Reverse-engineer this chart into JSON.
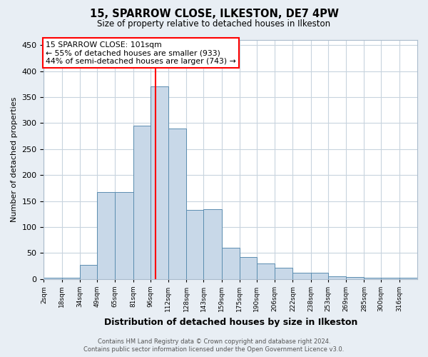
{
  "title": "15, SPARROW CLOSE, ILKESTON, DE7 4PW",
  "subtitle": "Size of property relative to detached houses in Ilkeston",
  "xlabel": "Distribution of detached houses by size in Ilkeston",
  "ylabel": "Number of detached properties",
  "bin_labels": [
    "2sqm",
    "18sqm",
    "34sqm",
    "49sqm",
    "65sqm",
    "81sqm",
    "96sqm",
    "112sqm",
    "128sqm",
    "143sqm",
    "159sqm",
    "175sqm",
    "190sqm",
    "206sqm",
    "222sqm",
    "238sqm",
    "253sqm",
    "269sqm",
    "285sqm",
    "300sqm",
    "316sqm"
  ],
  "bin_edges": [
    2,
    18,
    34,
    49,
    65,
    81,
    96,
    112,
    128,
    143,
    159,
    175,
    190,
    206,
    222,
    238,
    253,
    269,
    285,
    300,
    316,
    332
  ],
  "bar_heights": [
    2,
    2,
    27,
    168,
    168,
    295,
    370,
    290,
    133,
    135,
    60,
    42,
    30,
    22,
    12,
    12,
    5,
    4,
    2,
    2,
    2
  ],
  "bar_color": "#c8d8e8",
  "bar_edgecolor": "#5b8db0",
  "vline_x": 101,
  "vline_color": "red",
  "annotation_text": "15 SPARROW CLOSE: 101sqm\n← 55% of detached houses are smaller (933)\n44% of semi-detached houses are larger (743) →",
  "annotation_box_edgecolor": "red",
  "annotation_box_facecolor": "white",
  "ylim": [
    0,
    460
  ],
  "yticks": [
    0,
    50,
    100,
    150,
    200,
    250,
    300,
    350,
    400,
    450
  ],
  "footer_line1": "Contains HM Land Registry data © Crown copyright and database right 2024.",
  "footer_line2": "Contains public sector information licensed under the Open Government Licence v3.0.",
  "bg_color": "#e8eef4",
  "plot_bg_color": "#ffffff",
  "grid_color": "#c8d4de"
}
